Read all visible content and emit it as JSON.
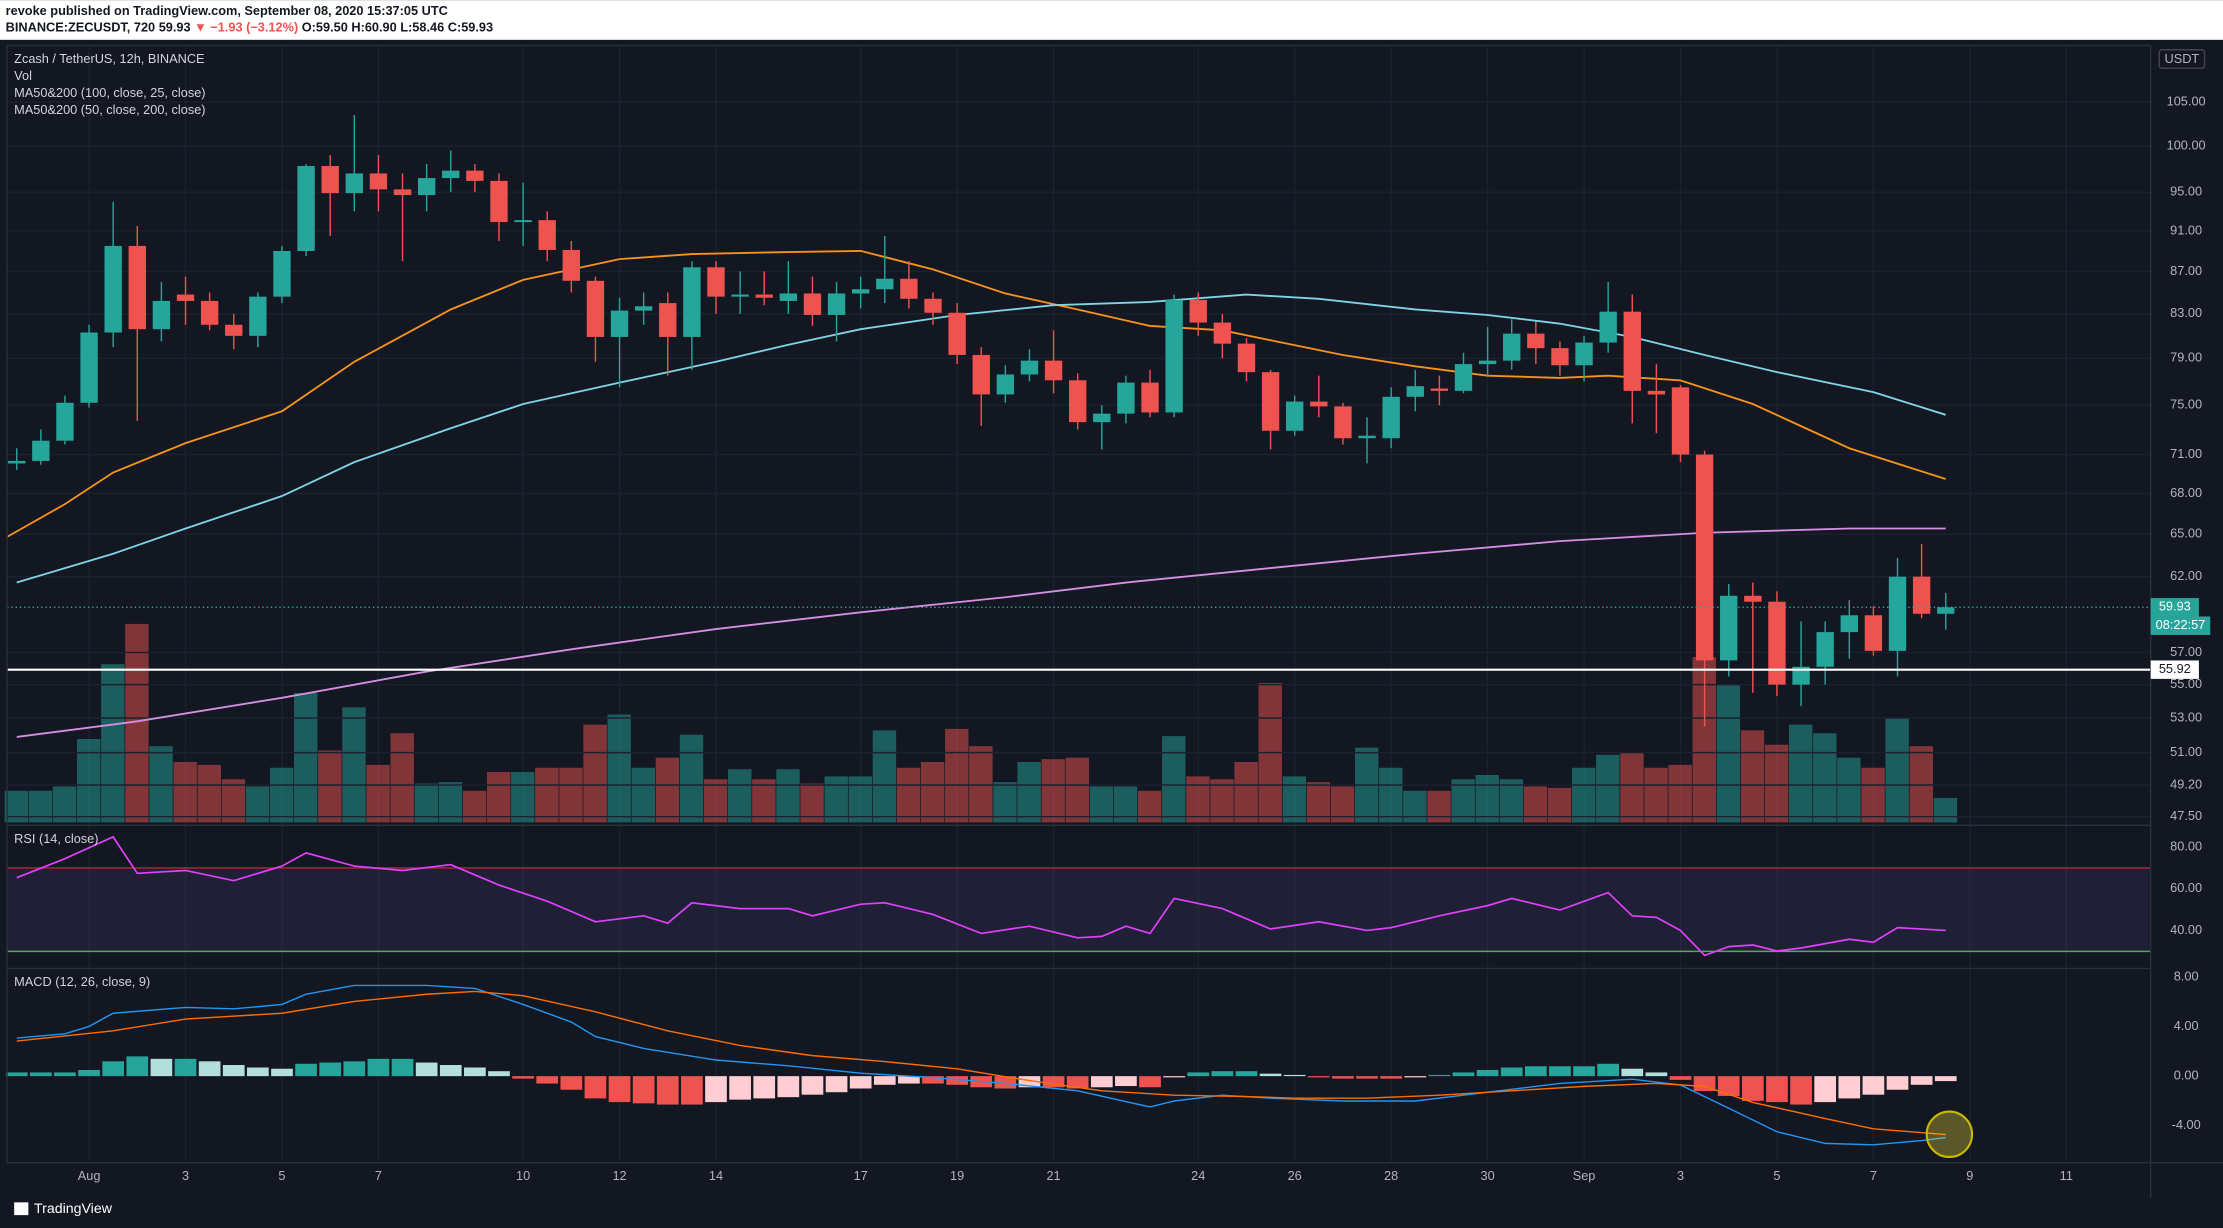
{
  "header": {
    "publisher": "revoke published on TradingView.com, September 08, 2020 15:37:05 UTC",
    "symbol": "BINANCE:ZECUSDT, 720",
    "price": "59.93",
    "change": "▼ −1.93 (−3.12%)",
    "ohlc": "O:59.50 H:60.90 L:58.46 C:59.93"
  },
  "footer": {
    "brand": "TradingView"
  },
  "chart_data": [
    {
      "type": "candlestick",
      "title": "Zcash / TetherUS, 12h, BINANCE",
      "currency": "USDT",
      "legend": "top-left",
      "log": true,
      "grid": true,
      "up_color": "#26a69a",
      "down_color": "#ef5350",
      "xlim": [
        -0.4,
        88.5
      ],
      "xticks": [
        {
          "value": 3,
          "label": "Aug"
        },
        {
          "value": 7,
          "label": "3"
        },
        {
          "value": 11,
          "label": "5"
        },
        {
          "value": 15,
          "label": "7"
        },
        {
          "value": 21,
          "label": "10"
        },
        {
          "value": 25,
          "label": "12"
        },
        {
          "value": 29,
          "label": "14"
        },
        {
          "value": 35,
          "label": "17"
        },
        {
          "value": 39,
          "label": "19"
        },
        {
          "value": 43,
          "label": "21"
        },
        {
          "value": 49,
          "label": "24"
        },
        {
          "value": 53,
          "label": "26"
        },
        {
          "value": 57,
          "label": "28"
        },
        {
          "value": 61,
          "label": "30"
        },
        {
          "value": 65,
          "label": "Sep"
        },
        {
          "value": 69,
          "label": "3"
        },
        {
          "value": 73,
          "label": "5"
        },
        {
          "value": 77,
          "label": "7"
        },
        {
          "value": 81,
          "label": "9"
        },
        {
          "value": 85,
          "label": "11"
        }
      ],
      "ylim": [
        47.2,
        111.8
      ],
      "yticks": [
        {
          "value": 47.5,
          "label": "47.50"
        },
        {
          "value": 49.2,
          "label": "49.20"
        },
        {
          "value": 51,
          "label": "51.00"
        },
        {
          "value": 53,
          "label": "53.00"
        },
        {
          "value": 55,
          "label": "55.00"
        },
        {
          "value": 57,
          "label": "57.00"
        },
        {
          "value": 62,
          "label": "62.00"
        },
        {
          "value": 65,
          "label": "65.00"
        },
        {
          "value": 68,
          "label": "68.00"
        },
        {
          "value": 71,
          "label": "71.00"
        },
        {
          "value": 75,
          "label": "75.00"
        },
        {
          "value": 79,
          "label": "79.00"
        },
        {
          "value": 83,
          "label": "83.00"
        },
        {
          "value": 87,
          "label": "87.00"
        },
        {
          "value": 91,
          "label": "91.00"
        },
        {
          "value": 95,
          "label": "95.00"
        },
        {
          "value": 100,
          "label": "100.00"
        },
        {
          "value": 105,
          "label": "105.00"
        }
      ],
      "opens": [
        70.3,
        70.5,
        72.1,
        75.2,
        81.3,
        89.5,
        81.6,
        84.8,
        84.2,
        82,
        81,
        84.6,
        89,
        97.8,
        94.9,
        97,
        95.3,
        94.7,
        96.5,
        97.3,
        96.2,
        91.9,
        92.1,
        89.1,
        86.1,
        80.9,
        83.3,
        84,
        80.9,
        87.4,
        84.6,
        84.8,
        84.2,
        84.9,
        82.9,
        84.9,
        85.3,
        86.3,
        84.4,
        83.1,
        79.3,
        75.9,
        77.6,
        78.8,
        77.1,
        73.6,
        74.3,
        76.9,
        74.4,
        84.3,
        82.2,
        80.3,
        77.8,
        72.9,
        75.3,
        74.9,
        72.3,
        72.3,
        75.7,
        76.4,
        76.2,
        78.5,
        78.8,
        81.2,
        79.9,
        78.4,
        80.4,
        83.2,
        76.2,
        76.5,
        71,
        56.5,
        60.7,
        60.3,
        55,
        56.1,
        58.3,
        59.4,
        57.1,
        62,
        59.5
      ],
      "highs": [
        71.5,
        73,
        75.8,
        82,
        94,
        91.5,
        86,
        86.5,
        85,
        83,
        85,
        89.5,
        98,
        99,
        103.5,
        99,
        97,
        98,
        99.5,
        98,
        97,
        96,
        93,
        90,
        86.5,
        84.5,
        85,
        85,
        88,
        88,
        87,
        87,
        88,
        86.5,
        86,
        86.5,
        90.5,
        88,
        85,
        84,
        80,
        78.4,
        79.8,
        81.5,
        77.7,
        75,
        77.5,
        78,
        84.8,
        85,
        83,
        80.8,
        78,
        75.8,
        77.5,
        75.2,
        74,
        76.5,
        78,
        77.5,
        79.5,
        81.8,
        82.5,
        82.3,
        80.5,
        81,
        86,
        84.8,
        78.5,
        76.7,
        71.3,
        61.5,
        61.6,
        61,
        59,
        59,
        60.4,
        60,
        63.3,
        64.3,
        60.9
      ],
      "lows": [
        69.8,
        70.2,
        71.8,
        74.8,
        80,
        73.7,
        80.5,
        82,
        81.5,
        79.8,
        80,
        84,
        88.5,
        90.5,
        93,
        93,
        88,
        93,
        95,
        95,
        90,
        89.5,
        88,
        85,
        78.7,
        76.5,
        82,
        77.5,
        78,
        83,
        83,
        83.8,
        83,
        81.9,
        80.5,
        83.5,
        84,
        83.5,
        82,
        78.5,
        73.3,
        75.2,
        77,
        76,
        73,
        71.4,
        73.5,
        74,
        74,
        81,
        79,
        77,
        71.4,
        72.5,
        74,
        71.8,
        70.3,
        71.5,
        74.5,
        75,
        76,
        77.5,
        78,
        78.5,
        77.5,
        77,
        79.5,
        73.5,
        72.7,
        70.4,
        52.5,
        55.5,
        54.5,
        54.3,
        53.7,
        55,
        56.6,
        56.8,
        55.5,
        59.2,
        58.46
      ],
      "closes": [
        70.5,
        72.1,
        75.2,
        81.3,
        89.5,
        81.6,
        84.2,
        84.2,
        82,
        81,
        84.6,
        89,
        97.8,
        94.9,
        97,
        95.3,
        94.7,
        96.5,
        97.3,
        96.2,
        91.9,
        92.1,
        89.1,
        86.1,
        80.9,
        83.3,
        83.7,
        80.9,
        87.4,
        84.6,
        84.8,
        84.5,
        84.9,
        82.9,
        84.9,
        85.3,
        86.3,
        84.4,
        83.1,
        79.3,
        75.9,
        77.6,
        78.8,
        77.1,
        73.6,
        74.3,
        76.9,
        74.4,
        84.3,
        82.2,
        80.3,
        77.8,
        72.9,
        75.3,
        74.9,
        72.3,
        72.5,
        75.7,
        76.6,
        76.2,
        78.5,
        78.8,
        81.2,
        79.9,
        78.4,
        80.4,
        83.2,
        76.2,
        75.9,
        71,
        56.5,
        60.7,
        60.3,
        55,
        56.1,
        58.3,
        59.4,
        57.1,
        62,
        59.5,
        59.93
      ],
      "lines": [
        {
          "name": "MA50&200 (100, close, 25, close)",
          "color": "#f7931a",
          "x": [
            -0.4,
            2,
            4,
            7,
            11,
            14,
            18,
            21,
            25,
            28,
            32,
            35,
            38,
            41,
            44,
            47,
            50,
            52,
            55,
            58,
            61,
            64,
            66,
            69,
            72,
            76,
            80
          ],
          "values": [
            64.8,
            67.2,
            69.6,
            71.9,
            74.5,
            78.7,
            83.4,
            86.2,
            88.2,
            88.7,
            88.9,
            89.0,
            87.2,
            84.9,
            83.4,
            81.9,
            81.5,
            80.6,
            79.3,
            78.3,
            77.5,
            77.3,
            77.5,
            77.1,
            75.1,
            71.5,
            69.1
          ]
        },
        {
          "name": "MA50&200 (50, close, 200, close)",
          "color": "#7fd4e6",
          "x": [
            0,
            4,
            7,
            11,
            14,
            18,
            21,
            25,
            29,
            32,
            35,
            39,
            43,
            47,
            51,
            54,
            58,
            61,
            64,
            67,
            70,
            73,
            77,
            80
          ],
          "values": [
            61.6,
            63.6,
            65.4,
            67.8,
            70.4,
            73.1,
            75.1,
            76.9,
            78.7,
            80.2,
            81.6,
            82.9,
            83.8,
            84.1,
            84.8,
            84.4,
            83.4,
            82.9,
            82.1,
            80.9,
            79.3,
            77.8,
            76.1,
            74.2
          ]
        },
        {
          "color": "#d68fe0",
          "x": [
            0,
            5,
            11,
            17,
            23,
            29,
            35,
            41,
            46,
            52,
            58,
            64,
            70,
            76,
            80
          ],
          "values": [
            51.9,
            52.8,
            54.2,
            55.8,
            57.2,
            58.5,
            59.6,
            60.6,
            61.6,
            62.6,
            63.6,
            64.5,
            65.1,
            65.4,
            65.4
          ]
        }
      ],
      "hline": 55.92,
      "last_price": 59.93,
      "countdown": "08:22:57"
    },
    {
      "type": "bar",
      "title": "Vol",
      "values": [
        22,
        22,
        25,
        58,
        110,
        138,
        53,
        42,
        40,
        30,
        25,
        38,
        90,
        50,
        80,
        40,
        62,
        27,
        28,
        22,
        35,
        35,
        38,
        38,
        68,
        75,
        38,
        45,
        61,
        30,
        37,
        30,
        37,
        27,
        32,
        32,
        64,
        38,
        42,
        65,
        53,
        28,
        42,
        44,
        45,
        25,
        25,
        22,
        60,
        32,
        30,
        42,
        97,
        32,
        28,
        25,
        52,
        38,
        22,
        22,
        30,
        33,
        30,
        25,
        24,
        38,
        47,
        49,
        38,
        40,
        115,
        96,
        64,
        54,
        68,
        62,
        45,
        38,
        73,
        53,
        17
      ]
    },
    {
      "type": "line",
      "title": "RSI (14, close)",
      "color": "#e040fb",
      "upper_band": 70,
      "lower_band": 30,
      "ylim": [
        22.5,
        89.1
      ],
      "yticks": [
        {
          "value": 80,
          "label": "80.00"
        },
        {
          "value": 60,
          "label": "60.00"
        },
        {
          "value": 40,
          "label": "40.00"
        }
      ],
      "x": [
        0,
        2,
        4,
        5,
        7,
        9,
        11,
        12,
        14,
        16,
        18,
        20,
        22,
        24,
        26,
        27,
        28,
        30,
        32,
        33,
        35,
        36,
        38,
        40,
        42,
        44,
        45,
        46,
        47,
        48,
        50,
        52,
        54,
        56,
        57,
        59,
        61,
        62,
        64,
        66,
        67,
        68,
        69,
        70,
        71,
        72,
        73,
        74,
        76,
        77,
        78,
        80
      ],
      "values": [
        65.3,
        74.4,
        84.9,
        67.4,
        68.8,
        63.9,
        70.9,
        77.2,
        70.9,
        68.8,
        71.6,
        61.8,
        54.0,
        44.2,
        47.0,
        43.5,
        53.3,
        50.5,
        50.5,
        47.0,
        52.6,
        53.3,
        47.7,
        38.6,
        42.1,
        36.5,
        37.2,
        42.1,
        38.6,
        55.4,
        50.5,
        40.7,
        44.2,
        40.0,
        41.4,
        47.0,
        51.9,
        55.4,
        49.8,
        58.2,
        47.0,
        46.3,
        40.0,
        28.1,
        32.3,
        33.0,
        30.2,
        31.6,
        35.8,
        34.4,
        41.4,
        40.0
      ]
    },
    {
      "type": "macd",
      "title": "MACD (12, 26, close, 9)",
      "ylim": [
        -7,
        8.6
      ],
      "yticks": [
        {
          "value": 8,
          "label": "8.00"
        },
        {
          "value": 4,
          "label": "4.00"
        },
        {
          "value": 0,
          "label": "0.00"
        },
        {
          "value": -4,
          "label": "-4.00"
        }
      ],
      "histogram": [
        0.3,
        0.3,
        0.3,
        0.5,
        1.2,
        1.6,
        1.4,
        1.4,
        1.2,
        0.9,
        0.7,
        0.6,
        1.0,
        1.1,
        1.2,
        1.4,
        1.4,
        1.1,
        0.9,
        0.7,
        0.4,
        -0.2,
        -0.6,
        -1.1,
        -1.8,
        -2.1,
        -2.2,
        -2.3,
        -2.3,
        -2.1,
        -1.9,
        -1.8,
        -1.7,
        -1.5,
        -1.3,
        -1.0,
        -0.7,
        -0.6,
        -0.6,
        -0.7,
        -0.9,
        -1.0,
        -0.9,
        -0.9,
        -1.0,
        -0.9,
        -0.8,
        -0.9,
        -0.1,
        0.3,
        0.4,
        0.4,
        0.2,
        0.1,
        -0.1,
        -0.2,
        -0.2,
        -0.2,
        -0.1,
        0.1,
        0.3,
        0.5,
        0.7,
        0.8,
        0.8,
        0.8,
        1.0,
        0.6,
        0.3,
        -0.3,
        -1.2,
        -1.6,
        -2.0,
        -2.1,
        -2.3,
        -2.1,
        -1.8,
        -1.5,
        -1.1,
        -0.7,
        -0.4
      ],
      "series": [
        {
          "color": "#2196f3",
          "x": [
            0,
            2,
            3,
            4,
            7,
            9,
            11,
            12,
            14,
            17,
            19,
            21,
            23,
            24,
            26,
            29,
            32,
            35,
            38,
            41,
            44,
            47,
            48,
            50,
            52,
            55,
            58,
            61,
            64,
            67,
            69,
            71,
            73,
            75,
            77,
            79,
            80
          ],
          "values": [
            3.08,
            3.43,
            4.02,
            5.09,
            5.56,
            5.44,
            5.8,
            6.63,
            7.34,
            7.34,
            7.1,
            5.8,
            4.38,
            3.2,
            2.25,
            1.3,
            0.83,
            0.24,
            -0.12,
            -0.59,
            -1.18,
            -2.49,
            -2.01,
            -1.54,
            -1.78,
            -2.01,
            -2.01,
            -1.3,
            -0.59,
            -0.24,
            -0.71,
            -2.6,
            -4.5,
            -5.44,
            -5.56,
            -5.21,
            -4.97
          ]
        },
        {
          "color": "#ff6d00",
          "x": [
            0,
            4,
            7,
            11,
            14,
            17,
            19,
            21,
            24,
            27,
            30,
            33,
            36,
            39,
            42,
            45,
            48,
            51,
            53,
            56,
            59,
            62,
            65,
            68,
            70,
            72,
            75,
            77,
            80
          ],
          "values": [
            2.84,
            3.67,
            4.62,
            5.09,
            6.04,
            6.63,
            6.86,
            6.51,
            5.21,
            3.67,
            2.49,
            1.66,
            1.18,
            0.59,
            -0.36,
            -1.18,
            -1.54,
            -1.66,
            -1.78,
            -1.78,
            -1.54,
            -1.18,
            -0.83,
            -0.59,
            -0.83,
            -2.13,
            -3.43,
            -4.26,
            -4.73
          ]
        }
      ]
    }
  ]
}
